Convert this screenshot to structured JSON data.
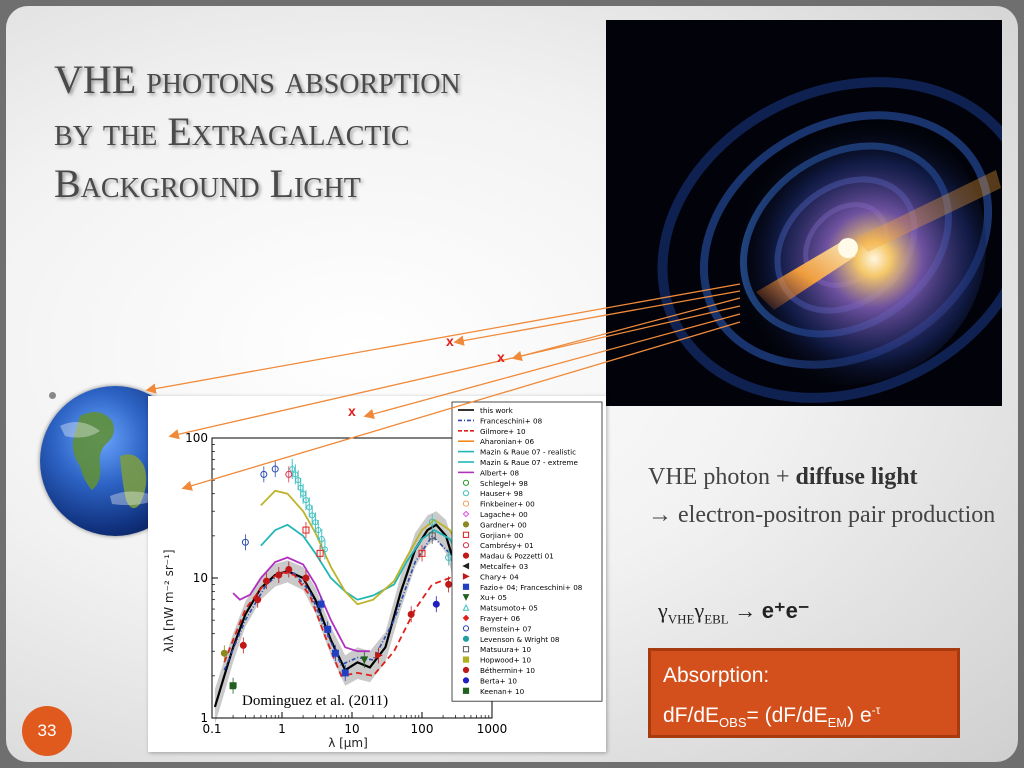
{
  "slide": {
    "title_lines": [
      "VHE photons absorption",
      "by the Extragalactic",
      "Background Light"
    ],
    "page_number": "33"
  },
  "side": {
    "line1_prefix": "VHE photon + ",
    "line1_bold": "diffuse light",
    "line2": "→ electron-positron pair production",
    "reaction_gamma1": "γ",
    "reaction_sub1": "VHE",
    "reaction_gamma2": "γ",
    "reaction_sub2": "EBL",
    "reaction_arrow": " → ",
    "reaction_products": "e⁺e⁻"
  },
  "absorption_box": {
    "title": "Absorption:",
    "eq_a": "dF/dE",
    "eq_sub_a": "OBS",
    "eq_b": "= (dF/dE",
    "eq_sub_b": "EM",
    "eq_c": ") e",
    "eq_sup": "-τ"
  },
  "markers": {
    "x_label": "x"
  },
  "colors": {
    "accent": "#d3501c",
    "marker": "#e0201b",
    "ray": "#f08a3a"
  },
  "icons": {
    "earth": "earth-globe-image",
    "galaxy": "blazar-galaxy-image"
  },
  "chart_data": {
    "type": "line",
    "xlabel": "λ [μm]",
    "ylabel": "λIλ [nW m⁻² sr⁻¹]",
    "x_scale": "log",
    "y_scale": "log",
    "xlim": [
      0.1,
      1000
    ],
    "ylim": [
      1,
      100
    ],
    "xticks": [
      {
        "v": 0.1,
        "label": "0.1"
      },
      {
        "v": 1,
        "label": "1"
      },
      {
        "v": 10,
        "label": "10"
      },
      {
        "v": 100,
        "label": "100"
      },
      {
        "v": 1000,
        "label": "1000"
      }
    ],
    "yticks": [
      {
        "v": 1,
        "label": "1"
      },
      {
        "v": 10,
        "label": "10"
      },
      {
        "v": 100,
        "label": "100"
      }
    ],
    "annotation": "Dominguez et al. (2011)",
    "legend_position": "right",
    "legend": [
      {
        "name": "this work",
        "color": "#000000",
        "kind": "line"
      },
      {
        "name": "Franceschini+ 08",
        "color": "#2a4bb0",
        "kind": "dashdot"
      },
      {
        "name": "Gilmore+ 10",
        "color": "#e0201b",
        "kind": "dashed"
      },
      {
        "name": "Aharonian+ 06",
        "color": "#f08a1c",
        "kind": "line"
      },
      {
        "name": "Mazin & Raue 07 - realistic",
        "color": "#22b7b7",
        "kind": "line"
      },
      {
        "name": "Mazin & Raue 07 - extreme",
        "color": "#22b7b7",
        "kind": "line"
      },
      {
        "name": "Albert+ 08",
        "color": "#b030c0",
        "kind": "line"
      },
      {
        "name": "Schlegel+ 98",
        "color": "#2a9a2a",
        "kind": "circle-open"
      },
      {
        "name": "Hauser+ 98",
        "color": "#40c0c0",
        "kind": "circle-open"
      },
      {
        "name": "Finkbeiner+ 00",
        "color": "#f0a060",
        "kind": "circle-open"
      },
      {
        "name": "Lagache+ 00",
        "color": "#e050e0",
        "kind": "diamond-open"
      },
      {
        "name": "Gardner+ 00",
        "color": "#8a8a20",
        "kind": "circle"
      },
      {
        "name": "Gorjian+ 00",
        "color": "#e0201b",
        "kind": "square-open"
      },
      {
        "name": "Cambrésy+ 01",
        "color": "#e03050",
        "kind": "circle-open"
      },
      {
        "name": "Madau & Pozzetti 01",
        "color": "#c01818",
        "kind": "circle"
      },
      {
        "name": "Metcalfe+ 03",
        "color": "#202020",
        "kind": "triangle-left"
      },
      {
        "name": "Chary+ 04",
        "color": "#c01818",
        "kind": "triangle-right"
      },
      {
        "name": "Fazio+ 04; Franceschini+ 08",
        "color": "#2040c0",
        "kind": "square"
      },
      {
        "name": "Xu+ 05",
        "color": "#206020",
        "kind": "triangle-down"
      },
      {
        "name": "Matsumoto+ 05",
        "color": "#40c0c0",
        "kind": "triangle-open"
      },
      {
        "name": "Frayer+ 06",
        "color": "#e0201b",
        "kind": "diamond"
      },
      {
        "name": "Bernstein+ 07",
        "color": "#2a4bb0",
        "kind": "circle-open"
      },
      {
        "name": "Levenson & Wright 08",
        "color": "#20a0a0",
        "kind": "circle"
      },
      {
        "name": "Matsuura+ 10",
        "color": "#5a5a5a",
        "kind": "square-open"
      },
      {
        "name": "Hopwood+ 10",
        "color": "#b0b020",
        "kind": "square"
      },
      {
        "name": "Béthermin+ 10",
        "color": "#c01818",
        "kind": "circle"
      },
      {
        "name": "Berta+ 10",
        "color": "#2020c0",
        "kind": "circle"
      },
      {
        "name": "Keenan+ 10",
        "color": "#206020",
        "kind": "square"
      }
    ],
    "series": [
      {
        "legend_index": 0,
        "color": "#000000",
        "dash": "",
        "width": 2.2,
        "x": [
          0.11,
          0.15,
          0.2,
          0.3,
          0.5,
          0.8,
          1.2,
          2,
          3,
          5,
          8,
          12,
          18,
          30,
          50,
          80,
          120,
          160,
          220,
          300,
          400
        ],
        "y": [
          1.2,
          2.0,
          3.2,
          5.5,
          8.5,
          10.5,
          11.2,
          10.0,
          7.0,
          3.6,
          2.2,
          2.5,
          2.3,
          3.2,
          8.0,
          16.0,
          22.0,
          24.0,
          20.0,
          12.0,
          6.0
        ]
      },
      {
        "legend_index": 1,
        "color": "#2a4bb0",
        "dash": "4,2,1,2",
        "width": 1.6,
        "x": [
          0.15,
          0.3,
          0.6,
          1,
          1.5,
          2.5,
          4,
          7,
          12,
          20,
          40,
          80,
          140,
          250,
          400
        ],
        "y": [
          2.2,
          5.0,
          9.0,
          11.0,
          10.8,
          8.0,
          4.5,
          2.4,
          2.7,
          2.6,
          5.0,
          13.0,
          20.0,
          15.0,
          7.0
        ]
      },
      {
        "legend_index": 2,
        "color": "#e0201b",
        "dash": "6,4",
        "width": 1.8,
        "x": [
          0.15,
          0.3,
          0.6,
          1,
          1.5,
          2.5,
          4,
          7,
          12,
          20,
          40,
          80,
          140,
          250,
          400
        ],
        "y": [
          2.5,
          6.0,
          9.5,
          11.0,
          10.5,
          7.5,
          4.0,
          2.0,
          2.1,
          2.0,
          3.0,
          6.0,
          9.0,
          10.0,
          7.0
        ]
      },
      {
        "legend_index": 4,
        "color": "#22b7b7",
        "dash": "",
        "width": 1.8,
        "x": [
          0.5,
          0.8,
          1.2,
          2,
          3,
          5,
          8,
          12,
          20,
          40,
          60,
          100,
          150,
          250,
          400
        ],
        "y": [
          17.0,
          22.0,
          24.0,
          20.0,
          15.0,
          10.0,
          8.0,
          7.0,
          7.5,
          9.0,
          13.0,
          19.0,
          22.0,
          19.0,
          12.0
        ]
      },
      {
        "legend_index": 5,
        "color": "#bdb42a",
        "dash": "",
        "width": 1.8,
        "x": [
          0.5,
          0.8,
          1.2,
          2,
          3,
          5,
          8,
          12,
          20,
          40,
          60,
          100,
          150,
          250,
          400
        ],
        "y": [
          33.0,
          42.0,
          40.0,
          30.0,
          21.0,
          12.0,
          8.0,
          6.5,
          7.0,
          9.5,
          14.0,
          22.0,
          26.0,
          22.0,
          13.0
        ]
      },
      {
        "legend_index": 6,
        "color": "#b030c0",
        "dash": "",
        "width": 1.8,
        "x": [
          0.2,
          0.25,
          0.35,
          0.5,
          0.8,
          1.2,
          2,
          3,
          5,
          8,
          12,
          18
        ],
        "y": [
          7.8,
          7.0,
          7.6,
          10.0,
          13.0,
          14.0,
          12.5,
          9.0,
          5.0,
          3.2,
          3.0,
          3.0
        ]
      }
    ],
    "points": [
      {
        "x": 0.15,
        "y": 2.9,
        "color": "#8a8a20",
        "kind": "circle"
      },
      {
        "x": 0.2,
        "y": 1.7,
        "color": "#206020",
        "kind": "square"
      },
      {
        "x": 0.28,
        "y": 3.3,
        "color": "#c01818",
        "kind": "circle"
      },
      {
        "x": 0.45,
        "y": 7.0,
        "color": "#c01818",
        "kind": "circle"
      },
      {
        "x": 0.6,
        "y": 9.5,
        "color": "#c01818",
        "kind": "circle"
      },
      {
        "x": 0.9,
        "y": 10.5,
        "color": "#c01818",
        "kind": "circle"
      },
      {
        "x": 1.25,
        "y": 11.5,
        "color": "#c01818",
        "kind": "circle"
      },
      {
        "x": 2.2,
        "y": 10.0,
        "color": "#c01818",
        "kind": "circle"
      },
      {
        "x": 3.6,
        "y": 6.5,
        "color": "#2040c0",
        "kind": "square"
      },
      {
        "x": 4.5,
        "y": 4.3,
        "color": "#2040c0",
        "kind": "square"
      },
      {
        "x": 5.8,
        "y": 2.9,
        "color": "#2040c0",
        "kind": "square"
      },
      {
        "x": 8.0,
        "y": 2.1,
        "color": "#2040c0",
        "kind": "square"
      },
      {
        "x": 15,
        "y": 2.6,
        "color": "#206020",
        "kind": "triangle-down"
      },
      {
        "x": 24,
        "y": 2.8,
        "color": "#c01818",
        "kind": "triangle-right"
      },
      {
        "x": 70,
        "y": 5.5,
        "color": "#c01818",
        "kind": "circle"
      },
      {
        "x": 100,
        "y": 15.0,
        "color": "#e0201b",
        "kind": "square-open"
      },
      {
        "x": 140,
        "y": 20.0,
        "color": "#5a5a5a",
        "kind": "square-open"
      },
      {
        "x": 160,
        "y": 6.5,
        "color": "#2020c0",
        "kind": "circle"
      },
      {
        "x": 240,
        "y": 9.0,
        "color": "#c01818",
        "kind": "circle"
      },
      {
        "x": 400,
        "y": 6.0,
        "color": "#206020",
        "kind": "square"
      },
      {
        "x": 0.3,
        "y": 18.0,
        "color": "#2a4bb0",
        "kind": "circle-open"
      },
      {
        "x": 0.55,
        "y": 55.0,
        "color": "#2a4bb0",
        "kind": "circle-open"
      },
      {
        "x": 0.8,
        "y": 60.0,
        "color": "#2a4bb0",
        "kind": "circle-open"
      },
      {
        "x": 1.25,
        "y": 55.0,
        "color": "#e03050",
        "kind": "circle-open"
      },
      {
        "x": 2.2,
        "y": 22.0,
        "color": "#e0201b",
        "kind": "square-open"
      },
      {
        "x": 3.5,
        "y": 15.0,
        "color": "#e0201b",
        "kind": "square-open"
      },
      {
        "x": 140,
        "y": 25.0,
        "color": "#40c0c0",
        "kind": "circle-open"
      },
      {
        "x": 240,
        "y": 14.0,
        "color": "#40c0c0",
        "kind": "circle-open"
      }
    ],
    "ebl_band": {
      "x": [
        0.11,
        0.15,
        0.2,
        0.3,
        0.5,
        0.8,
        1.2,
        2,
        3,
        5,
        8,
        12,
        18,
        30,
        50,
        80,
        120,
        160,
        220,
        300,
        400
      ],
      "y_low": [
        0.9,
        1.5,
        2.5,
        4.5,
        7.0,
        8.7,
        9.3,
        8.2,
        5.6,
        2.8,
        1.7,
        1.9,
        1.8,
        2.5,
        6.0,
        12.0,
        17.0,
        19.0,
        15.0,
        9.0,
        4.5
      ],
      "y_high": [
        1.6,
        2.6,
        4.0,
        6.8,
        10.3,
        12.6,
        13.4,
        12.0,
        8.5,
        4.5,
        2.8,
        3.2,
        3.0,
        4.1,
        10.5,
        21.0,
        28.0,
        30.0,
        26.0,
        16.0,
        8.0
      ]
    },
    "cyan_cluster": {
      "x": [
        1.4,
        1.55,
        1.7,
        1.85,
        2.0,
        2.2,
        2.45,
        2.7,
        3.0,
        3.3,
        3.7,
        4.1
      ],
      "y": [
        60.0,
        55.0,
        50.0,
        44.0,
        40.0,
        36.0,
        32.0,
        28.0,
        25.0,
        22.0,
        19.0,
        16.0
      ]
    }
  }
}
